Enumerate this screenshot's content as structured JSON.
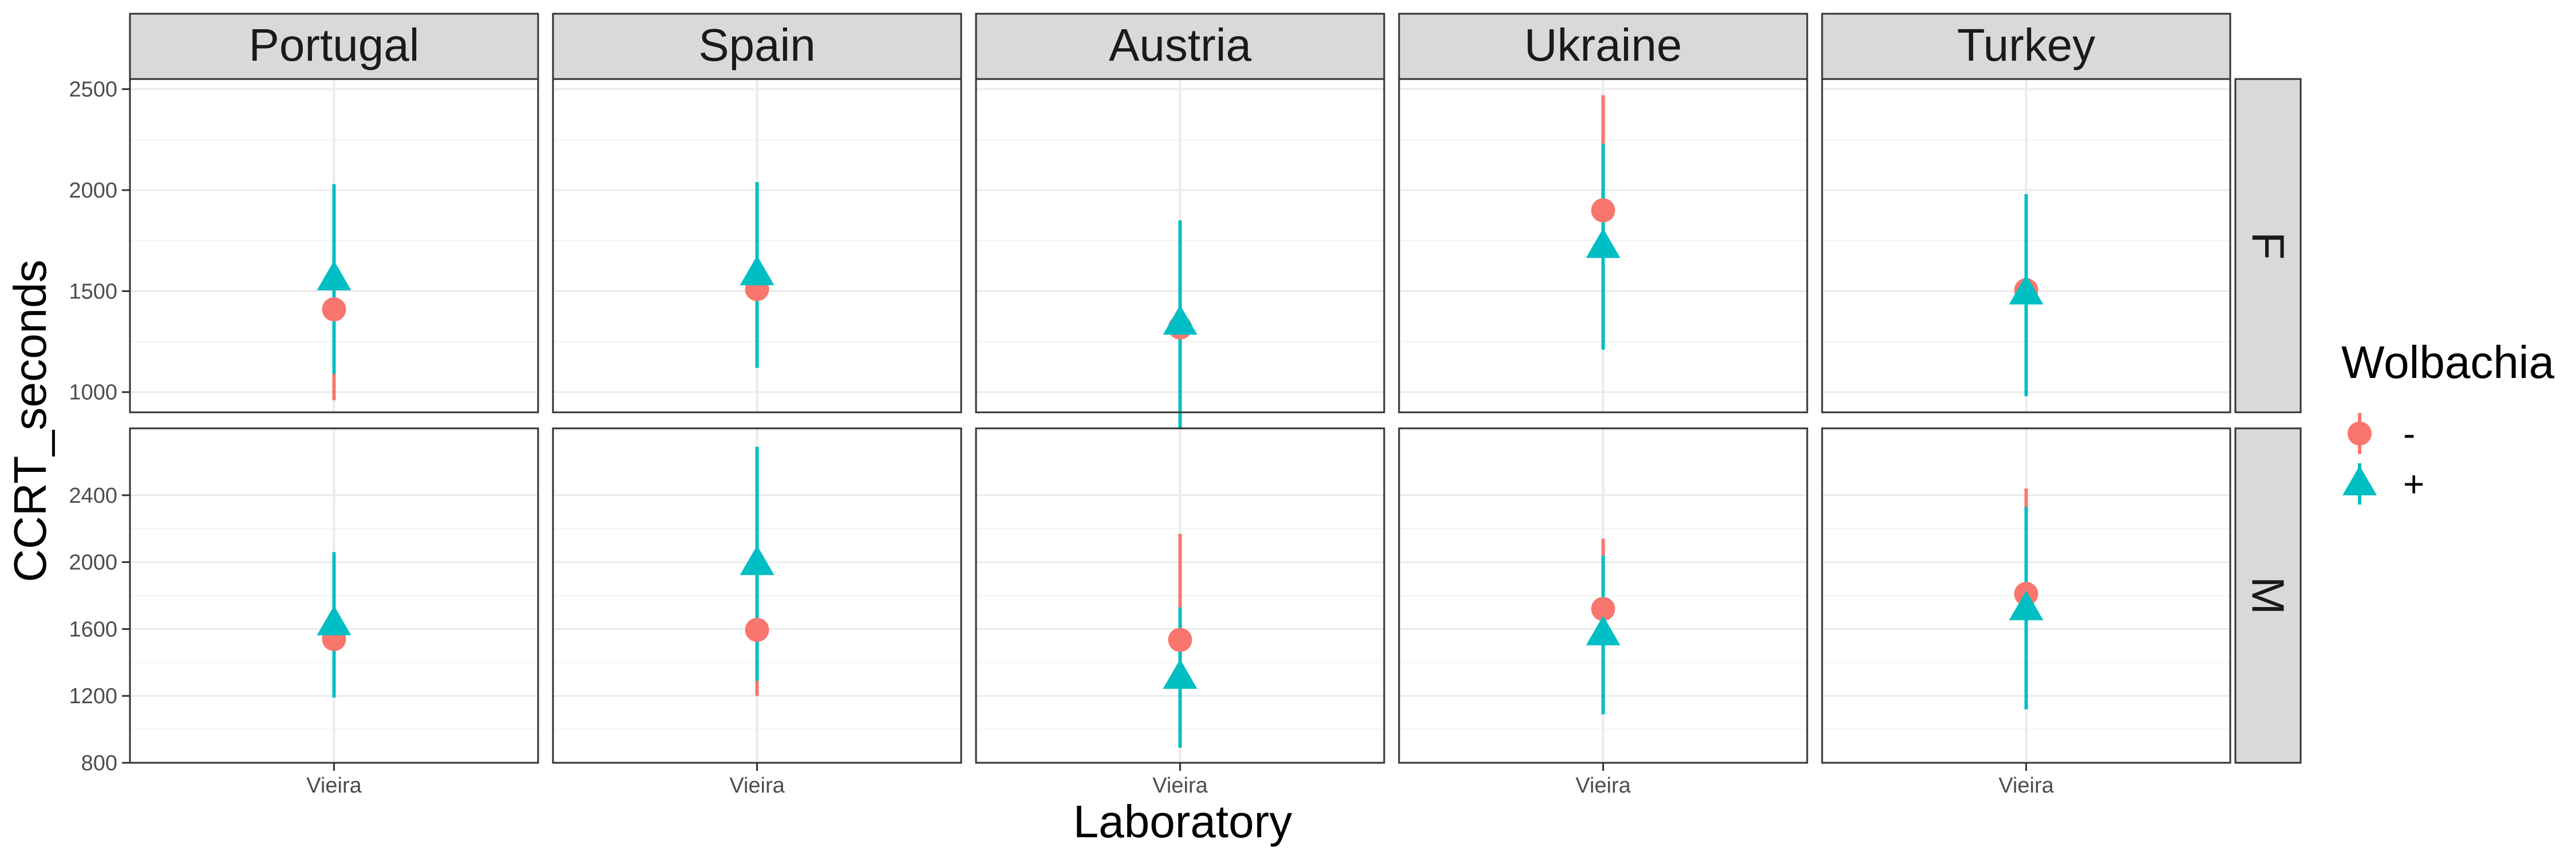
{
  "chart_data": {
    "type": "scatter",
    "chart_kind": "faceted point range (mean with error bars)",
    "title": "",
    "xlabel": "Laboratory",
    "ylabel": "CCRT_seconds",
    "column_facets": [
      "Portugal",
      "Spain",
      "Austria",
      "Ukraine",
      "Turkey"
    ],
    "row_facets": [
      "F",
      "M"
    ],
    "x_categories": [
      "Vieira"
    ],
    "legend": {
      "title": "Wolbachia",
      "placement": "right",
      "entries": [
        {
          "label": "-",
          "color": "#F8766D",
          "shape": "circle"
        },
        {
          "label": "+",
          "color": "#00BFC4",
          "shape": "triangle"
        }
      ]
    },
    "y_axes": {
      "F": {
        "ylim": [
          900,
          2550
        ],
        "ticks": [
          1000,
          1500,
          2000,
          2500
        ],
        "tick_labels": [
          "1000",
          "1500",
          "2000",
          "2500"
        ]
      },
      "M": {
        "ylim": [
          800,
          2800
        ],
        "ticks": [
          800,
          1200,
          1600,
          2000,
          2400
        ],
        "tick_labels": [
          "800",
          "1200",
          "1600",
          "2000",
          "2400"
        ]
      }
    },
    "grid": true,
    "series": [
      {
        "label": "-",
        "color": "#F8766D",
        "shape": "circle",
        "points": {
          "F": {
            "Portugal": {
              "x": "Vieira",
              "y": 1410,
              "ymin": 960,
              "ymax": 1860
            },
            "Spain": {
              "x": "Vieira",
              "y": 1510,
              "ymin": 1150,
              "ymax": 1870
            },
            "Austria": {
              "x": "Vieira",
              "y": 1320,
              "ymin": 1000,
              "ymax": 1640
            },
            "Ukraine": {
              "x": "Vieira",
              "y": 1900,
              "ymin": 1330,
              "ymax": 2470
            },
            "Turkey": {
              "x": "Vieira",
              "y": 1505,
              "ymin": 1080,
              "ymax": 1930
            }
          },
          "M": {
            "Portugal": {
              "x": "Vieira",
              "y": 1540,
              "ymin": 1200,
              "ymax": 1880
            },
            "Spain": {
              "x": "Vieira",
              "y": 1595,
              "ymin": 1200,
              "ymax": 1990
            },
            "Austria": {
              "x": "Vieira",
              "y": 1535,
              "ymin": 900,
              "ymax": 2170
            },
            "Ukraine": {
              "x": "Vieira",
              "y": 1720,
              "ymin": 1300,
              "ymax": 2140
            },
            "Turkey": {
              "x": "Vieira",
              "y": 1810,
              "ymin": 1180,
              "ymax": 2440
            }
          }
        }
      },
      {
        "label": "+",
        "color": "#00BFC4",
        "shape": "triangle",
        "points": {
          "F": {
            "Portugal": {
              "x": "Vieira",
              "y": 1560,
              "ymin": 1090,
              "ymax": 2030
            },
            "Spain": {
              "x": "Vieira",
              "y": 1585,
              "ymin": 1120,
              "ymax": 2040
            },
            "Austria": {
              "x": "Vieira",
              "y": 1340,
              "ymin": 810,
              "ymax": 1850
            },
            "Ukraine": {
              "x": "Vieira",
              "y": 1720,
              "ymin": 1210,
              "ymax": 2230
            },
            "Turkey": {
              "x": "Vieira",
              "y": 1490,
              "ymin": 980,
              "ymax": 1980
            }
          },
          "M": {
            "Portugal": {
              "x": "Vieira",
              "y": 1630,
              "ymin": 1190,
              "ymax": 2060
            },
            "Spain": {
              "x": "Vieira",
              "y": 1990,
              "ymin": 1290,
              "ymax": 2690
            },
            "Austria": {
              "x": "Vieira",
              "y": 1310,
              "ymin": 890,
              "ymax": 1730
            },
            "Ukraine": {
              "x": "Vieira",
              "y": 1570,
              "ymin": 1090,
              "ymax": 2040
            },
            "Turkey": {
              "x": "Vieira",
              "y": 1720,
              "ymin": 1120,
              "ymax": 2330
            }
          }
        }
      }
    ]
  }
}
